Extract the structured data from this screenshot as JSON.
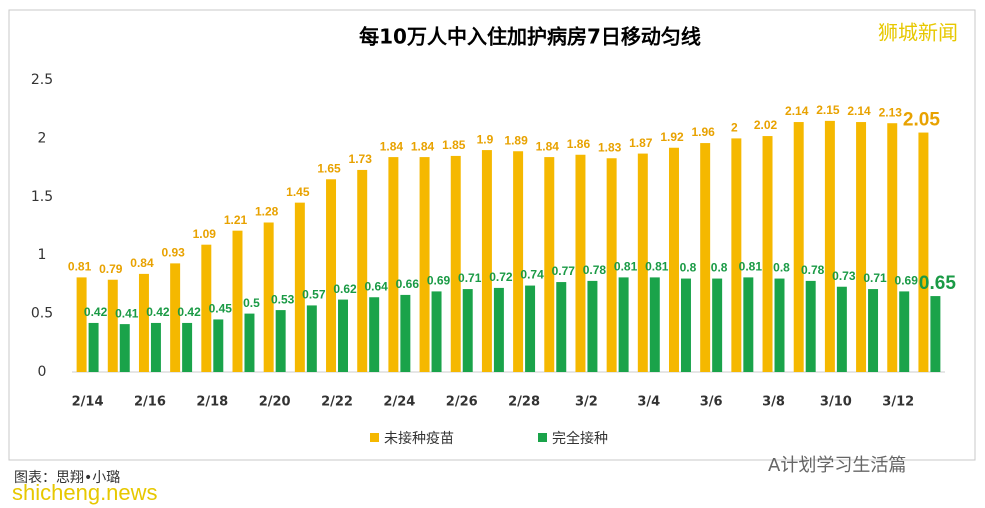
{
  "chart_data": {
    "type": "bar",
    "title": "每10万人中入住加护病房7日移动匀线",
    "categories": [
      "2/14",
      null,
      "2/16",
      null,
      "2/18",
      null,
      "2/20",
      null,
      "2/22",
      null,
      "2/24",
      null,
      "2/26",
      null,
      "2/28",
      null,
      "3/2",
      null,
      "3/4",
      null,
      "3/6",
      null,
      "3/8",
      null,
      "3/10",
      null,
      "3/12",
      null
    ],
    "series": [
      {
        "name": "未接种疫苗",
        "color": "#f5b800",
        "label_color": "#e8a200",
        "values": [
          0.81,
          0.79,
          0.84,
          0.93,
          1.09,
          1.21,
          1.28,
          1.45,
          1.65,
          1.73,
          1.84,
          1.84,
          1.85,
          1.9,
          1.89,
          1.84,
          1.86,
          1.83,
          1.87,
          1.92,
          1.96,
          2,
          2.02,
          2.14,
          2.15,
          2.14,
          2.13,
          2.05
        ]
      },
      {
        "name": "完全接种",
        "color": "#1aa34a",
        "label_color": "#1a9a45",
        "values": [
          0.42,
          0.41,
          0.42,
          0.42,
          0.45,
          0.5,
          0.53,
          0.57,
          0.62,
          0.64,
          0.66,
          0.69,
          0.71,
          0.72,
          0.74,
          0.77,
          0.78,
          0.81,
          0.81,
          0.8,
          0.8,
          0.81,
          0.8,
          0.78,
          0.73,
          0.71,
          0.69,
          0.65
        ]
      }
    ],
    "ylim": [
      0,
      2.5
    ],
    "yticks": [
      0,
      0.5,
      1,
      1.5,
      2,
      2.5
    ],
    "grid": false,
    "legend": "bottom"
  },
  "watermark": "狮城新闻",
  "source": "图表：思翔•小璐",
  "site": "shicheng.news",
  "account": "A计划学习生活篇"
}
